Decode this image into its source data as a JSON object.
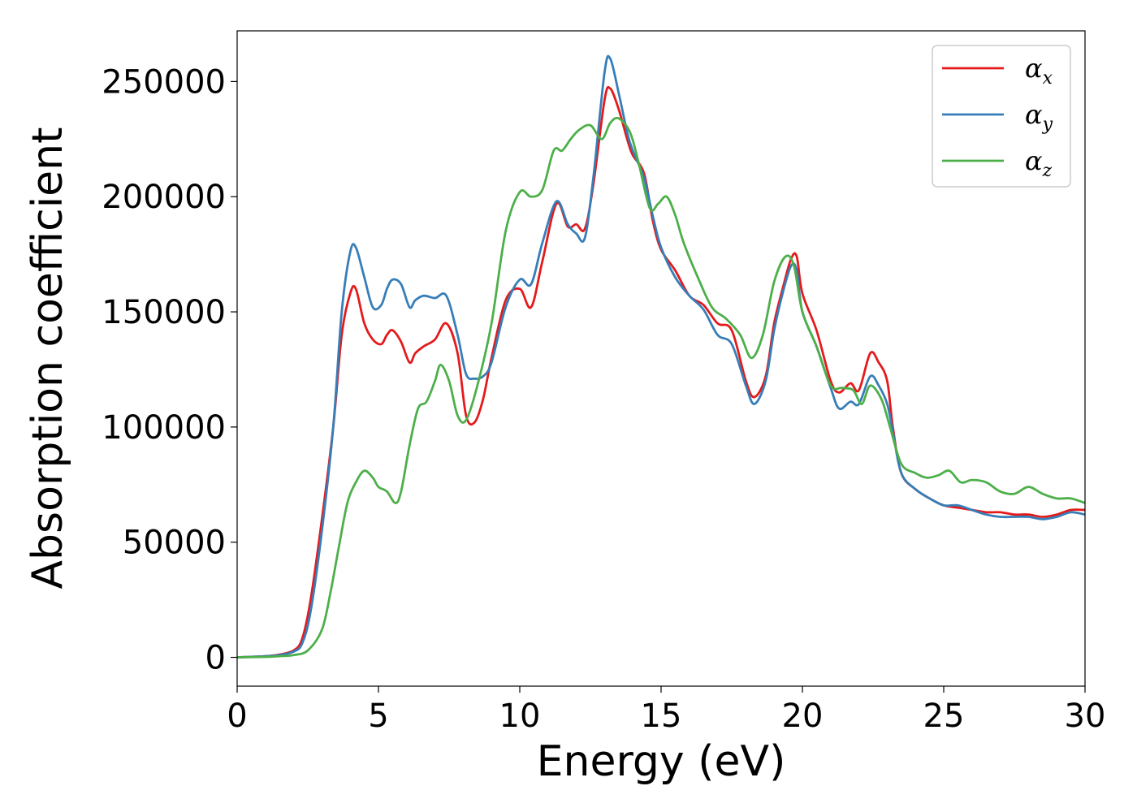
{
  "chart_data": {
    "type": "line",
    "title": "",
    "xlabel": "Energy (eV)",
    "ylabel": "Absorption coefficient",
    "xlim": [
      0,
      30
    ],
    "ylim": [
      -12500,
      272000
    ],
    "xticks": [
      0,
      5,
      10,
      15,
      20,
      25,
      30
    ],
    "yticks": [
      0,
      50000,
      100000,
      150000,
      200000,
      250000
    ],
    "grid": false,
    "legend_position": "top-right",
    "series": [
      {
        "name": "α",
        "subscript": "x",
        "color": "#e41a1c",
        "x": [
          0,
          1,
          1.5,
          2,
          2.3,
          2.6,
          3.0,
          3.4,
          3.7,
          4.0,
          4.2,
          4.5,
          4.8,
          5.1,
          5.3,
          5.5,
          5.8,
          6.1,
          6.3,
          6.6,
          7.0,
          7.4,
          7.8,
          8.1,
          8.4,
          8.7,
          9.0,
          9.5,
          10.0,
          10.4,
          10.8,
          11.3,
          11.7,
          12.0,
          12.3,
          12.6,
          13.0,
          13.2,
          13.5,
          13.8,
          14.0,
          14.4,
          14.7,
          15.0,
          15.5,
          16.0,
          16.5,
          17.0,
          17.5,
          18.0,
          18.3,
          18.7,
          19.0,
          19.3,
          19.6,
          19.8,
          20.0,
          20.5,
          21.0,
          21.3,
          21.7,
          22.0,
          22.4,
          22.7,
          23.0,
          23.2,
          23.5,
          24.0,
          24.5,
          25.0,
          25.5,
          26.0,
          26.5,
          27.0,
          27.5,
          28.0,
          28.5,
          29.0,
          29.5,
          30.0
        ],
        "values": [
          0,
          500,
          1200,
          3000,
          8000,
          25000,
          60000,
          100000,
          140000,
          158000,
          160000,
          145000,
          138000,
          136000,
          140000,
          142000,
          137000,
          128000,
          132000,
          135000,
          138000,
          145000,
          132000,
          105000,
          102000,
          112000,
          130000,
          155000,
          160000,
          152000,
          172000,
          197000,
          187000,
          188000,
          186000,
          205000,
          242000,
          247000,
          238000,
          225000,
          218000,
          210000,
          190000,
          177000,
          168000,
          157000,
          153000,
          145000,
          142000,
          120000,
          113000,
          122000,
          145000,
          160000,
          173000,
          174000,
          158000,
          142000,
          120000,
          115000,
          119000,
          116000,
          132000,
          128000,
          120000,
          100000,
          80000,
          73000,
          69000,
          66000,
          65000,
          64000,
          63000,
          63000,
          62000,
          62000,
          61000,
          62000,
          64000,
          64000
        ]
      },
      {
        "name": "α",
        "subscript": "y",
        "color": "#377eb8",
        "x": [
          0,
          1,
          1.5,
          2,
          2.3,
          2.6,
          3.0,
          3.4,
          3.7,
          4.0,
          4.2,
          4.5,
          4.8,
          5.1,
          5.3,
          5.5,
          5.8,
          6.1,
          6.3,
          6.6,
          7.0,
          7.4,
          7.8,
          8.1,
          8.4,
          8.7,
          9.0,
          9.5,
          10.0,
          10.4,
          10.8,
          11.3,
          11.7,
          12.0,
          12.3,
          12.6,
          13.0,
          13.2,
          13.5,
          13.8,
          14.0,
          14.4,
          14.7,
          15.0,
          15.5,
          16.0,
          16.5,
          17.0,
          17.5,
          18.0,
          18.3,
          18.7,
          19.0,
          19.3,
          19.6,
          19.8,
          20.0,
          20.5,
          21.0,
          21.3,
          21.7,
          22.0,
          22.4,
          22.7,
          23.0,
          23.2,
          23.5,
          24.0,
          24.5,
          25.0,
          25.5,
          26.0,
          26.5,
          27.0,
          27.5,
          28.0,
          28.5,
          29.0,
          29.5,
          30.0
        ],
        "values": [
          0,
          500,
          1000,
          2500,
          6000,
          20000,
          55000,
          100000,
          150000,
          176000,
          178000,
          165000,
          152000,
          153000,
          160000,
          164000,
          162000,
          152000,
          155000,
          157000,
          156000,
          157000,
          140000,
          123000,
          121000,
          122000,
          128000,
          152000,
          164000,
          162000,
          180000,
          198000,
          188000,
          184000,
          182000,
          208000,
          254000,
          260000,
          245000,
          228000,
          220000,
          208000,
          192000,
          178000,
          165000,
          157000,
          151000,
          140000,
          136000,
          118000,
          110000,
          120000,
          142000,
          158000,
          170000,
          168000,
          150000,
          135000,
          117000,
          108000,
          111000,
          110000,
          122000,
          118000,
          110000,
          98000,
          80000,
          73000,
          69000,
          66000,
          66000,
          64000,
          62000,
          61000,
          61000,
          61000,
          60000,
          61000,
          63000,
          62000
        ]
      },
      {
        "name": "α",
        "subscript": "z",
        "color": "#4daf4a",
        "x": [
          0,
          1,
          1.5,
          2,
          2.5,
          3.0,
          3.3,
          3.6,
          3.9,
          4.2,
          4.5,
          4.8,
          5.0,
          5.3,
          5.6,
          5.8,
          6.1,
          6.4,
          6.7,
          7.0,
          7.2,
          7.5,
          7.8,
          8.1,
          8.5,
          9.0,
          9.5,
          10.0,
          10.4,
          10.8,
          11.2,
          11.5,
          11.8,
          12.1,
          12.5,
          12.9,
          13.2,
          13.5,
          13.9,
          14.2,
          14.6,
          14.9,
          15.2,
          15.5,
          15.8,
          16.3,
          16.8,
          17.3,
          17.8,
          18.2,
          18.6,
          19.0,
          19.4,
          19.7,
          20.0,
          20.5,
          21.0,
          21.4,
          21.8,
          22.1,
          22.4,
          22.8,
          23.1,
          23.5,
          24.0,
          24.4,
          24.8,
          25.2,
          25.6,
          26.0,
          26.5,
          27.0,
          27.5,
          28.0,
          28.5,
          29.0,
          29.5,
          30.0
        ],
        "values": [
          0,
          200,
          500,
          1000,
          3000,
          12000,
          28000,
          48000,
          67000,
          76000,
          81000,
          78000,
          74000,
          72000,
          67000,
          72000,
          92000,
          108000,
          111000,
          120000,
          127000,
          120000,
          105000,
          103000,
          118000,
          145000,
          185000,
          202000,
          200000,
          203000,
          220000,
          220000,
          225000,
          229000,
          231000,
          225000,
          232000,
          234000,
          228000,
          215000,
          195000,
          197000,
          200000,
          192000,
          180000,
          165000,
          152000,
          147000,
          140000,
          130000,
          140000,
          163000,
          174000,
          170000,
          150000,
          135000,
          118000,
          117000,
          116000,
          110000,
          118000,
          112000,
          100000,
          84000,
          80000,
          78000,
          79000,
          81000,
          76000,
          77000,
          76000,
          72000,
          71000,
          74000,
          71000,
          69000,
          69000,
          67000
        ]
      }
    ]
  }
}
